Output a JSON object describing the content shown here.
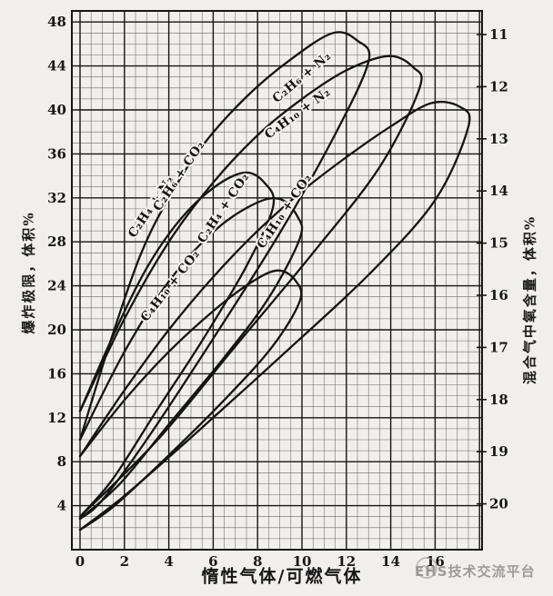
{
  "figure": {
    "background": "#f1efec",
    "ink": "#1a1a1a",
    "grid_minor_color": "#4a4a46",
    "grid_major_color": "#16160f",
    "curve_color": "#141414",
    "tick_color": "#171717"
  },
  "chart_data": {
    "type": "line",
    "title": "",
    "xlabel": "惰性气体/可燃气体",
    "ylabel_left": "爆炸极限，体积%",
    "ylabel_right": "混合气中氧含量，体积%",
    "xlim": [
      0,
      18.1
    ],
    "ylim": [
      0,
      49
    ],
    "x_ticks": [
      0,
      2,
      4,
      6,
      8,
      10,
      12,
      14,
      16
    ],
    "y_ticks_left": [
      4,
      8,
      12,
      16,
      20,
      24,
      28,
      32,
      36,
      40,
      44,
      48
    ],
    "y_ticks_right": [
      11,
      12,
      13,
      14,
      15,
      16,
      17,
      18,
      19,
      20
    ],
    "grid": {
      "x_minor_step": 0.5,
      "y_minor_step": 1,
      "x_major_step": 2,
      "y_major_step": 4
    },
    "legend_position": "labels-on-curves",
    "series": [
      {
        "name": "C₂H₄ + N₂",
        "points": [
          [
            0,
            10
          ],
          [
            1.3,
            18.5
          ],
          [
            2.7,
            26.7
          ],
          [
            4,
            32
          ],
          [
            5.5,
            36.7
          ],
          [
            7.5,
            41.2
          ],
          [
            9.5,
            44.6
          ],
          [
            11.4,
            47.0
          ],
          [
            12.5,
            46.3
          ],
          [
            13.0,
            44.4
          ],
          [
            11.5,
            37.8
          ],
          [
            9,
            28.8
          ],
          [
            6,
            19.2
          ],
          [
            3,
            10
          ],
          [
            1,
            4.5
          ],
          [
            0,
            2.8
          ]
        ]
      },
      {
        "name": "C₂H₆ + N₂",
        "points": [
          [
            0,
            12.6
          ],
          [
            2,
            21
          ],
          [
            4,
            28
          ],
          [
            6,
            33.4
          ],
          [
            8,
            37.7
          ],
          [
            10,
            41
          ],
          [
            12,
            43.6
          ],
          [
            13.9,
            44.9
          ],
          [
            15.0,
            43.9
          ],
          [
            15.3,
            42.0
          ],
          [
            13.5,
            34.8
          ],
          [
            10.5,
            27
          ],
          [
            7,
            18.5
          ],
          [
            3.5,
            10
          ],
          [
            0,
            3.0
          ]
        ]
      },
      {
        "name": "C₄H₁₀ + N₂",
        "points": [
          [
            0,
            8.5
          ],
          [
            2,
            14.5
          ],
          [
            4,
            20
          ],
          [
            6,
            24.8
          ],
          [
            8,
            29
          ],
          [
            10,
            32.6
          ],
          [
            12,
            35.7
          ],
          [
            14,
            38.5
          ],
          [
            15.8,
            40.6
          ],
          [
            17.1,
            40.3
          ],
          [
            17.5,
            38.5
          ],
          [
            16,
            31.8
          ],
          [
            13,
            25
          ],
          [
            9,
            17.5
          ],
          [
            5,
            10.2
          ],
          [
            2,
            4.9
          ],
          [
            0,
            1.8
          ]
        ]
      },
      {
        "name": "C₂H₆ + CO₂",
        "points": [
          [
            0,
            12.6
          ],
          [
            1.5,
            19.5
          ],
          [
            3,
            25.6
          ],
          [
            4.5,
            30
          ],
          [
            6,
            32.9
          ],
          [
            7.4,
            34.3
          ],
          [
            8.3,
            33.4
          ],
          [
            8.7,
            31.2
          ],
          [
            7.5,
            25.8
          ],
          [
            5.5,
            19
          ],
          [
            3.5,
            12.8
          ],
          [
            1.5,
            6.5
          ],
          [
            0,
            3.0
          ]
        ]
      },
      {
        "name": "C₂H₄ + CO₂",
        "points": [
          [
            0,
            10
          ],
          [
            2,
            18
          ],
          [
            4,
            24.4
          ],
          [
            6,
            28.9
          ],
          [
            7.8,
            31.4
          ],
          [
            9.0,
            31.9
          ],
          [
            9.8,
            30.3
          ],
          [
            9.9,
            28.3
          ],
          [
            8.5,
            22.9
          ],
          [
            6.5,
            17.5
          ],
          [
            4,
            11.4
          ],
          [
            1.8,
            6
          ],
          [
            0,
            2.8
          ]
        ]
      },
      {
        "name": "C₄H₁₀ + CO₂",
        "points": [
          [
            0,
            8.5
          ],
          [
            2,
            13.6
          ],
          [
            4,
            18
          ],
          [
            6,
            21.7
          ],
          [
            7.7,
            24.3
          ],
          [
            8.9,
            25.4
          ],
          [
            9.7,
            24.5
          ],
          [
            9.9,
            22.6
          ],
          [
            8.6,
            18.3
          ],
          [
            6.3,
            13.2
          ],
          [
            3.8,
            8.2
          ],
          [
            1.5,
            3.9
          ],
          [
            0,
            1.8
          ]
        ]
      }
    ],
    "curve_labels": [
      {
        "text": "C₂H₄ + N₂",
        "x": 3.35,
        "y": 31.0,
        "angle": -56
      },
      {
        "text": "C₂H₆ + CO₂",
        "x": 4.6,
        "y": 33.8,
        "angle": -56
      },
      {
        "text": "C₂H₄ + CO₂",
        "x": 6.6,
        "y": 30.9,
        "angle": -56
      },
      {
        "text": "C₄H₁₀ + CO₂",
        "x": 9.35,
        "y": 30.6,
        "angle": -56
      },
      {
        "text": "C₄H₁₀ + CO₂",
        "x": 4.2,
        "y": 23.8,
        "angle": -52
      },
      {
        "text": "C₂H₆ + N₂",
        "x": 10.1,
        "y": 42.7,
        "angle": -40
      },
      {
        "text": "C₄H₁₀ + N₂",
        "x": 9.9,
        "y": 39.4,
        "angle": -36
      }
    ]
  },
  "watermark": {
    "text": "EHS技术交流平台"
  }
}
